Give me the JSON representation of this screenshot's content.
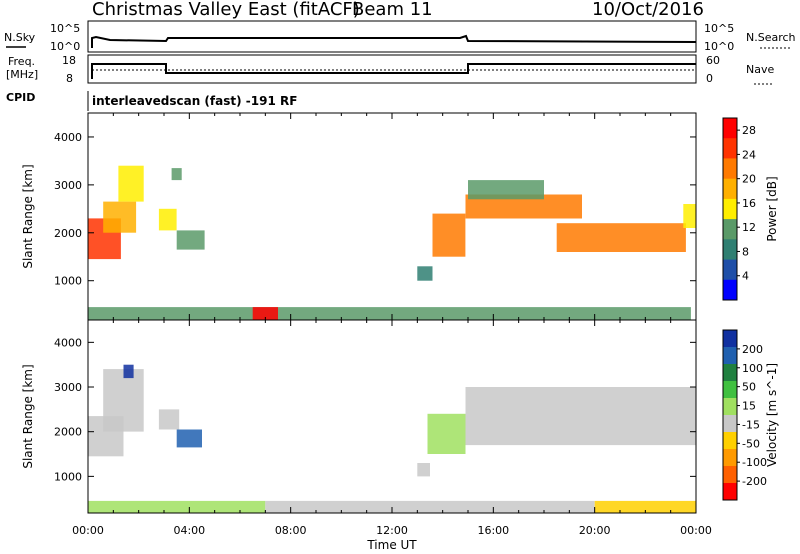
{
  "header": {
    "station": "Christmas Valley East (fitACF)",
    "beam": "Beam 11",
    "date": "10/Oct/2016"
  },
  "panels": {
    "nsky_label": "N.Sky",
    "nsearch_label": "N.Search",
    "noise_ticks": [
      "10^5",
      "10^0"
    ],
    "freq_label_line1": "Freq.",
    "freq_label_line2": "[MHz]",
    "freq_ticks": [
      "18",
      "8"
    ],
    "nave_label": "Nave",
    "nave_ticks": [
      "60",
      "0"
    ],
    "cpid_label": "CPID",
    "cpid_text": "interleavedscan (fast) -191 RF"
  },
  "colors": {
    "power": [
      "#0000ff",
      "#1f4fa8",
      "#2f7f72",
      "#5a9a68",
      "#ffee00",
      "#ffb000",
      "#ff7a00",
      "#ff3300",
      "#ff0000"
    ],
    "velocity": [
      "#1030a0",
      "#2060b0",
      "#208040",
      "#40c040",
      "#a0e060",
      "#c8c8c8",
      "#ffd000",
      "#ff9a00",
      "#ff6000",
      "#ff0000"
    ]
  },
  "chart_data": [
    {
      "type": "heatmap",
      "title": "",
      "xlabel": "Time UT",
      "ylabel": "Slant Range [km]",
      "xlim": [
        "00:00",
        "24:00"
      ],
      "ylim": [
        180,
        4500
      ],
      "x_ticks": [
        "00:00",
        "04:00",
        "08:00",
        "12:00",
        "16:00",
        "20:00",
        "00:00"
      ],
      "y_ticks": [
        1000,
        2000,
        3000,
        4000
      ],
      "colorbar": {
        "label": "Power [dB]",
        "ticks": [
          4,
          8,
          12,
          16,
          20,
          24,
          28
        ],
        "range": [
          0,
          30
        ]
      },
      "regions": [
        {
          "t0": 0.0,
          "t1": 1.3,
          "r0": 1450,
          "r1": 2300,
          "value": 26
        },
        {
          "t0": 0.6,
          "t1": 1.9,
          "r0": 2000,
          "r1": 2650,
          "value": 18
        },
        {
          "t0": 1.2,
          "t1": 2.2,
          "r0": 2650,
          "r1": 3400,
          "value": 14
        },
        {
          "t0": 2.8,
          "t1": 3.5,
          "r0": 2050,
          "r1": 2500,
          "value": 14
        },
        {
          "t0": 3.5,
          "t1": 4.6,
          "r0": 1650,
          "r1": 2050,
          "value": 10
        },
        {
          "t0": 3.3,
          "t1": 3.7,
          "r0": 3100,
          "r1": 3350,
          "value": 12
        },
        {
          "t0": 13.6,
          "t1": 14.9,
          "r0": 1500,
          "r1": 2400,
          "value": 20
        },
        {
          "t0": 13.0,
          "t1": 13.6,
          "r0": 1000,
          "r1": 1300,
          "value": 8
        },
        {
          "t0": 14.9,
          "t1": 19.5,
          "r0": 2300,
          "r1": 2800,
          "value": 20
        },
        {
          "t0": 15.0,
          "t1": 18.0,
          "r0": 2700,
          "r1": 3100,
          "value": 12
        },
        {
          "t0": 18.5,
          "t1": 23.6,
          "r0": 1600,
          "r1": 2200,
          "value": 22
        },
        {
          "t0": 23.5,
          "t1": 24.0,
          "r0": 2100,
          "r1": 2600,
          "value": 16
        },
        {
          "t0": 0.0,
          "t1": 23.8,
          "r0": 180,
          "r1": 450,
          "value": 10
        },
        {
          "t0": 6.5,
          "t1": 7.5,
          "r0": 180,
          "r1": 450,
          "value": 28
        }
      ]
    },
    {
      "type": "heatmap",
      "title": "",
      "xlabel": "Time UT",
      "ylabel": "Slant Range [km]",
      "xlim": [
        "00:00",
        "24:00"
      ],
      "ylim": [
        180,
        4500
      ],
      "x_ticks": [
        "00:00",
        "04:00",
        "08:00",
        "12:00",
        "16:00",
        "20:00",
        "00:00"
      ],
      "y_ticks": [
        1000,
        2000,
        3000,
        4000
      ],
      "colorbar": {
        "label": "Velocity [m s^-1]",
        "ticks": [
          "200",
          "100",
          "50",
          "15",
          "-15",
          "-50",
          "-100",
          "-200"
        ],
        "range": [
          -250,
          250
        ]
      },
      "regions": [
        {
          "t0": 0.0,
          "t1": 1.4,
          "r0": 1450,
          "r1": 2350,
          "value": 0
        },
        {
          "t0": 0.6,
          "t1": 2.2,
          "r0": 2000,
          "r1": 3400,
          "value": 0
        },
        {
          "t0": 2.8,
          "t1": 3.6,
          "r0": 2050,
          "r1": 2500,
          "value": 0
        },
        {
          "t0": 3.5,
          "t1": 4.5,
          "r0": 1650,
          "r1": 2050,
          "value": 180
        },
        {
          "t0": 1.4,
          "t1": 1.8,
          "r0": 3200,
          "r1": 3500,
          "value": 200
        },
        {
          "t0": 13.4,
          "t1": 14.9,
          "r0": 1500,
          "r1": 2400,
          "value": 30
        },
        {
          "t0": 13.0,
          "t1": 13.5,
          "r0": 1000,
          "r1": 1300,
          "value": 0
        },
        {
          "t0": 14.9,
          "t1": 24.0,
          "r0": 1700,
          "r1": 3000,
          "value": 0
        },
        {
          "t0": 0.0,
          "t1": 7.0,
          "r0": 180,
          "r1": 450,
          "value": 40
        },
        {
          "t0": 7.0,
          "t1": 20.0,
          "r0": 180,
          "r1": 450,
          "value": -40
        },
        {
          "t0": 20.0,
          "t1": 24.0,
          "r0": 180,
          "r1": 450,
          "value": -60
        }
      ]
    }
  ]
}
